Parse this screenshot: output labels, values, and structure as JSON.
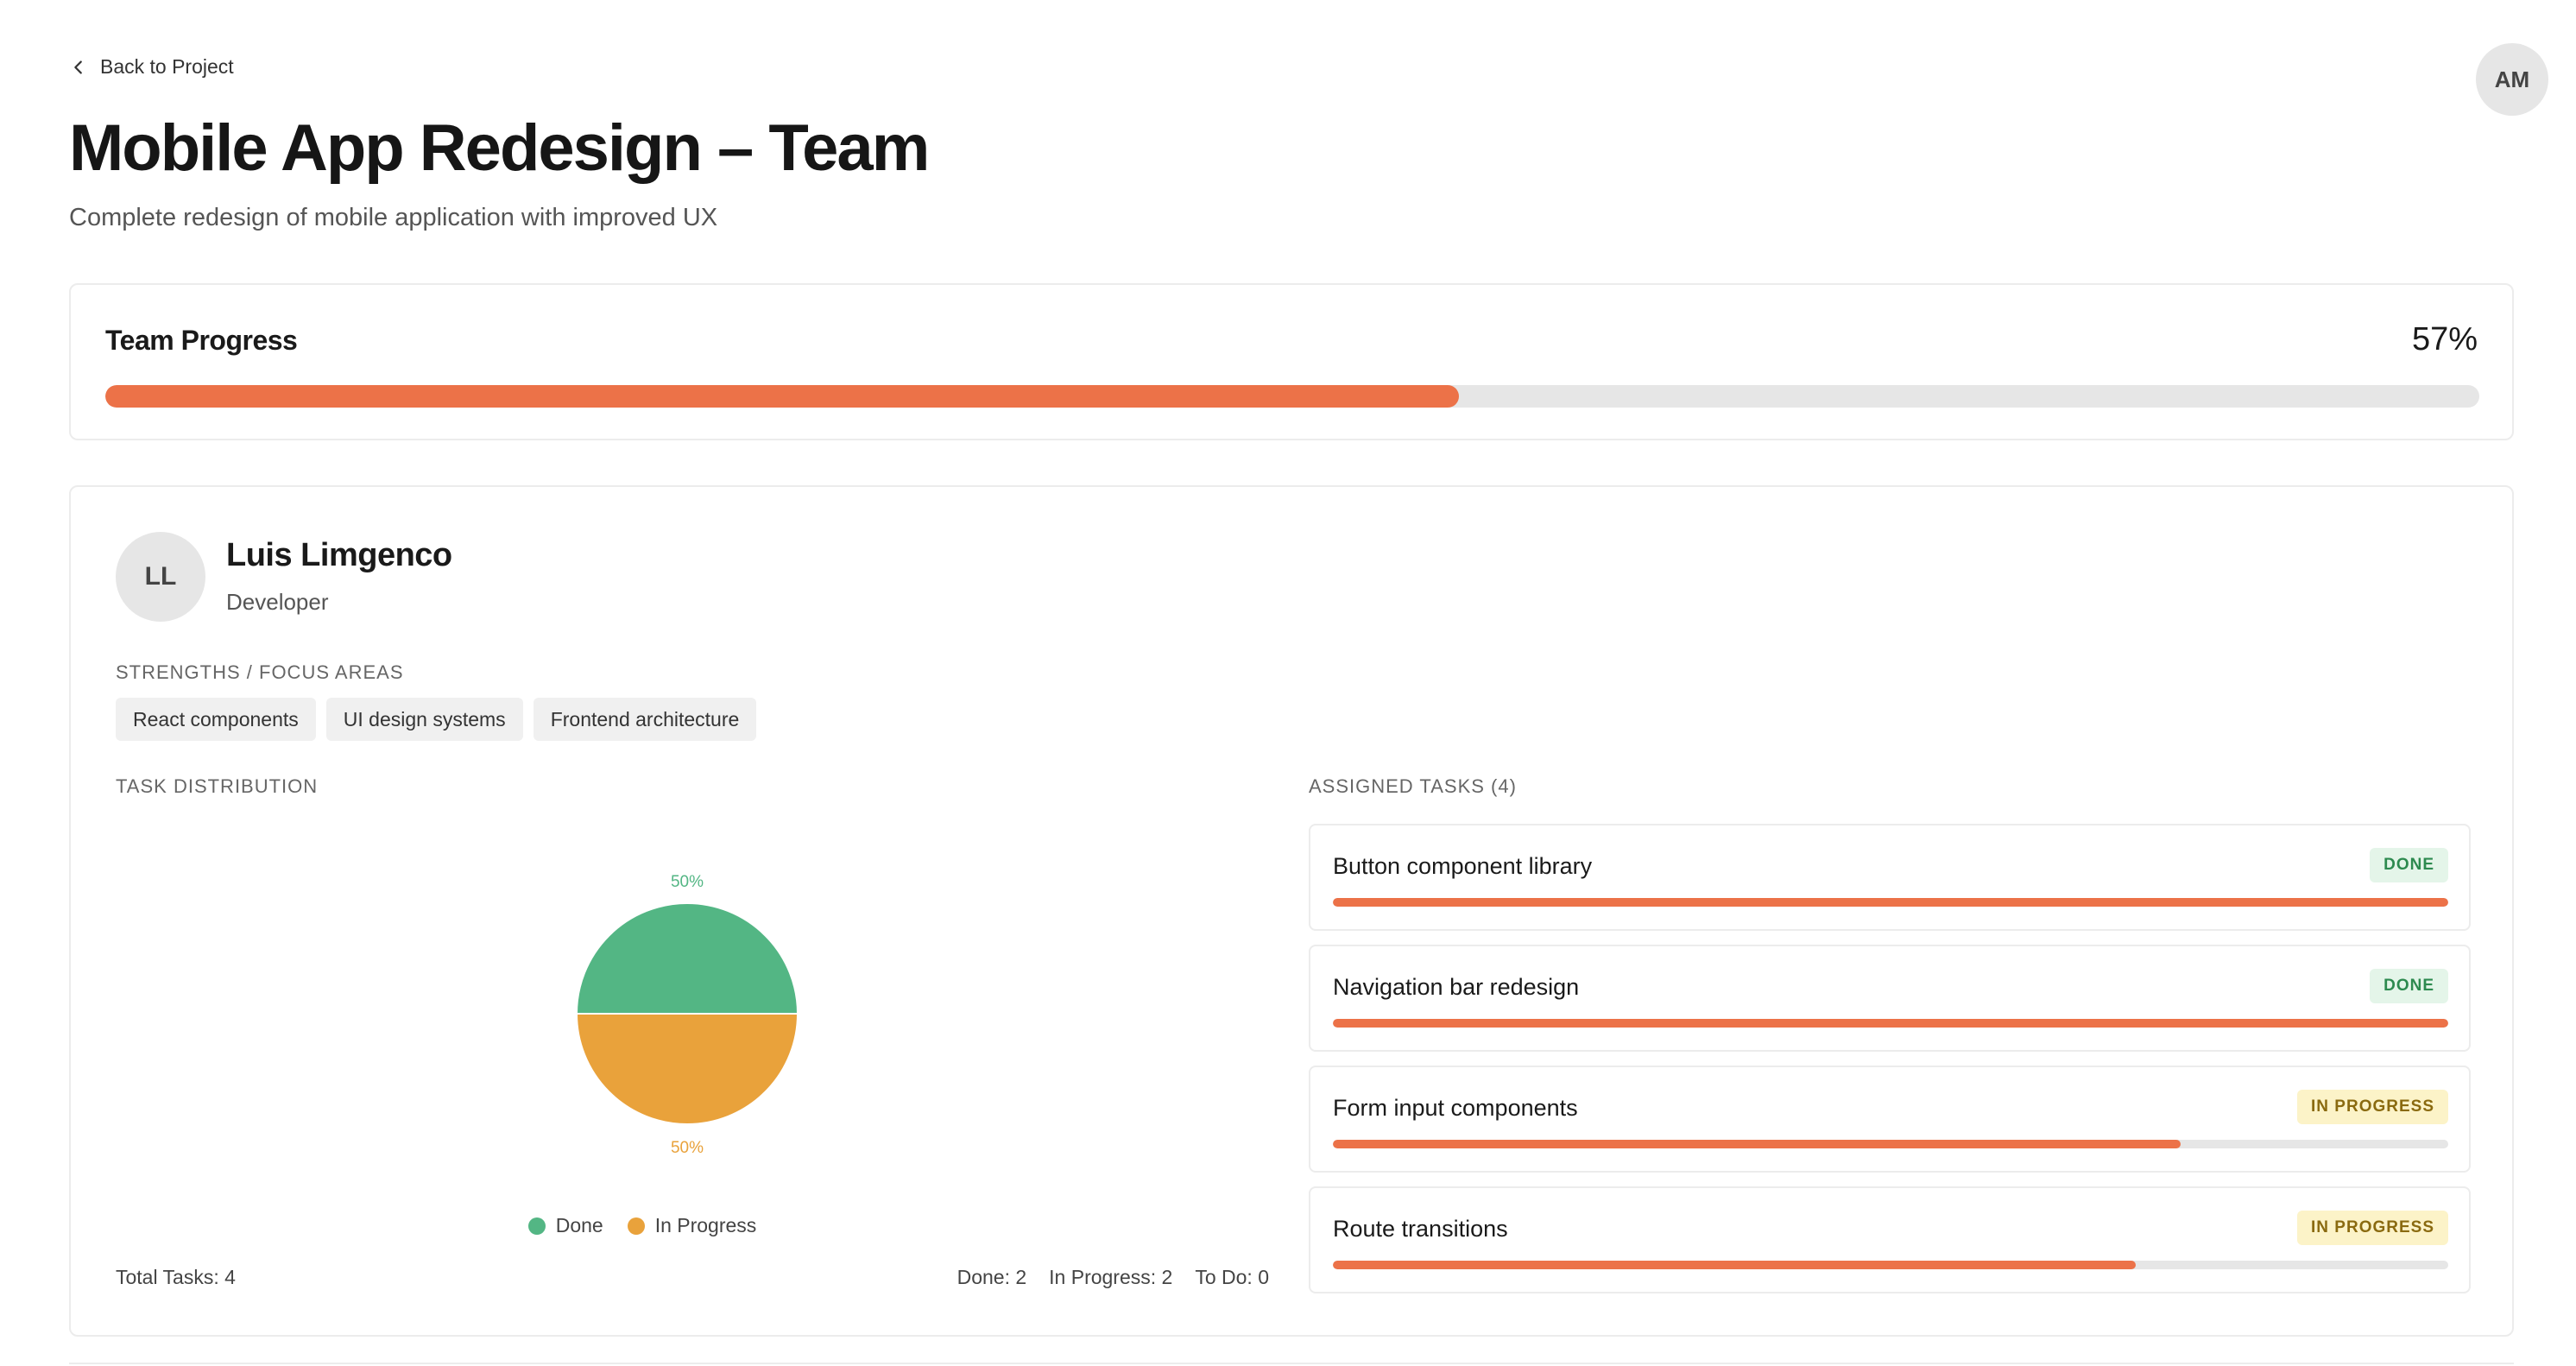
{
  "nav": {
    "back_label": "Back to Project"
  },
  "user": {
    "initials": "AM"
  },
  "page": {
    "title": "Mobile App Redesign – Team",
    "subtitle": "Complete redesign of mobile application with improved UX"
  },
  "team_progress": {
    "label": "Team Progress",
    "percent_label": "57%",
    "percent": 57
  },
  "member": {
    "initials": "LL",
    "name": "Luis Limgenco",
    "role": "Developer",
    "strengths_label": "STRENGTHS / FOCUS AREAS",
    "strengths": [
      "React components",
      "UI design systems",
      "Frontend architecture"
    ],
    "distribution_label": "TASK DISTRIBUTION",
    "total_tasks": "Total Tasks: 4",
    "done_count": "Done: 2",
    "in_progress_count": "In Progress: 2",
    "todo_count": "To Do: 0",
    "assigned_label": "ASSIGNED TASKS (4)",
    "tasks": [
      {
        "title": "Button component library",
        "status": "DONE",
        "progress": 100
      },
      {
        "title": "Navigation bar redesign",
        "status": "DONE",
        "progress": 100
      },
      {
        "title": "Form input components",
        "status": "IN PROGRESS",
        "progress": 76
      },
      {
        "title": "Route transitions",
        "status": "IN PROGRESS",
        "progress": 72
      }
    ]
  },
  "chart_data": {
    "type": "pie",
    "categories": [
      "Done",
      "In Progress"
    ],
    "values": [
      50,
      50
    ],
    "labels": [
      "50%",
      "50%"
    ],
    "colors": [
      "#53b684",
      "#e9a23b"
    ],
    "legend": "bottom"
  },
  "colors": {
    "accent": "#ec7248",
    "done": "#53b684",
    "in_progress": "#e9a23b"
  }
}
